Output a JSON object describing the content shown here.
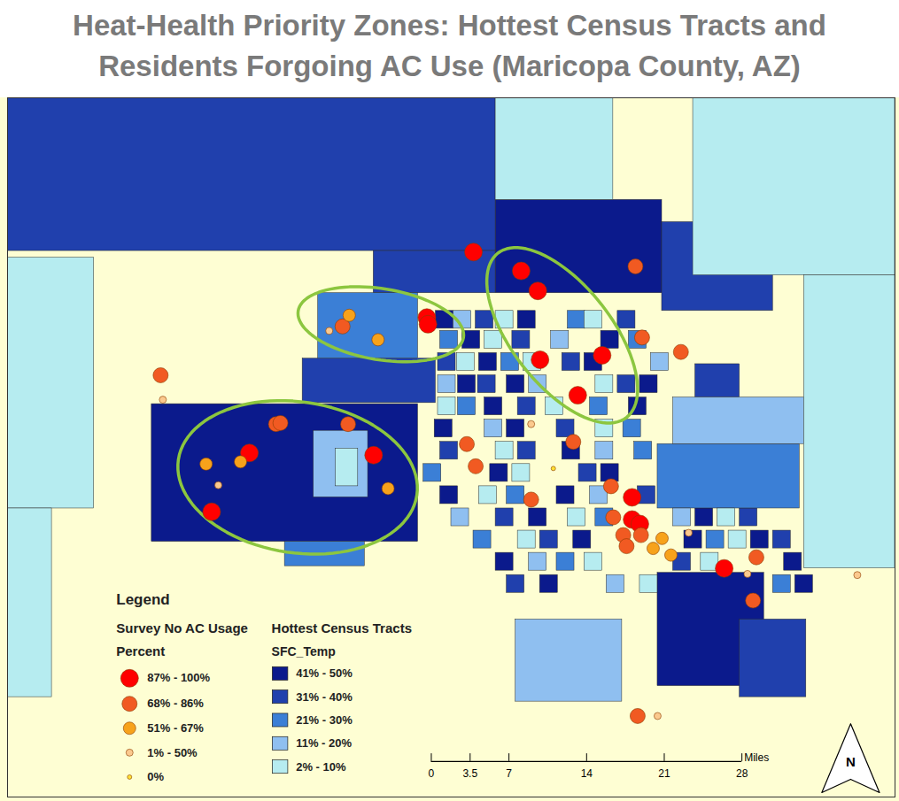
{
  "chart_data": {
    "type": "map",
    "title": "Heat-Health Priority Zones: Hottest Census Tracts and Residents Forgoing AC Use (Maricopa County, AZ)",
    "xlim": [
      0,
      80
    ],
    "ylim": [
      0,
      63
    ],
    "tick_labels": false,
    "legend_title": "Legend",
    "survey": {
      "title": "Survey No AC Usage",
      "subtitle": "Percent",
      "classes": [
        {
          "label": "87% - 100%",
          "color": "#ff0000",
          "points": [
            [
              42,
              13.9
            ],
            [
              46.3,
              15.6
            ],
            [
              47.8,
              17.4
            ],
            [
              37.8,
              19.8
            ],
            [
              37.9,
              20.4
            ],
            [
              48,
              23.6
            ],
            [
              53.6,
              23.2
            ],
            [
              51.4,
              26.8
            ],
            [
              21.8,
              32
            ],
            [
              33,
              32.2
            ],
            [
              18.4,
              37.3
            ],
            [
              56.3,
              36
            ],
            [
              56.3,
              38
            ],
            [
              57,
              38.4
            ],
            [
              64.6,
              42.4
            ]
          ]
        },
        {
          "label": "68% - 86%",
          "color": "#f15a22",
          "points": [
            [
              56.6,
              15.2
            ],
            [
              57.2,
              21.6
            ],
            [
              60.7,
              22.9
            ],
            [
              13.8,
              25
            ],
            [
              30.2,
              20.6
            ],
            [
              24.2,
              29.4
            ],
            [
              24.6,
              29.3
            ],
            [
              30.7,
              29.4
            ],
            [
              41.4,
              31.2
            ],
            [
              42.2,
              33.2
            ],
            [
              51,
              31
            ],
            [
              47.2,
              36.2
            ],
            [
              54.4,
              35
            ],
            [
              54.6,
              37.8
            ],
            [
              55.5,
              39.4
            ],
            [
              57.1,
              39.4
            ],
            [
              55.8,
              40.4
            ],
            [
              67.5,
              41.4
            ],
            [
              67.2,
              45.3
            ],
            [
              56.8,
              55.7
            ]
          ]
        },
        {
          "label": "51% - 67%",
          "color": "#f7a21b",
          "points": [
            [
              30.8,
              19.6
            ],
            [
              33.4,
              21.8
            ],
            [
              17.9,
              33
            ],
            [
              21,
              32.8
            ],
            [
              34.3,
              35.2
            ],
            [
              58.2,
              40.6
            ],
            [
              59.8,
              41.2
            ],
            [
              59,
              39.7
            ]
          ]
        },
        {
          "label": "1% - 50%",
          "color": "#fbc98e",
          "points": [
            [
              14,
              27.2
            ],
            [
              29,
              21
            ],
            [
              47.2,
              29.4
            ],
            [
              19,
              34.9
            ],
            [
              58.6,
              55.7
            ],
            [
              76.6,
              43
            ],
            [
              66.7,
              42.9
            ],
            [
              61.4,
              39.2
            ]
          ]
        },
        {
          "label": "0%",
          "color": "#ffe135",
          "points": [
            [
              49.2,
              33.4
            ]
          ]
        }
      ]
    },
    "tracts": {
      "title": "Hottest Census Tracts",
      "subtitle": "SFC_Temp",
      "classes": [
        {
          "label": "41% - 50%",
          "color": "#0b1a8c",
          "rects": [
            [
              44,
              9.2,
              59,
              17.6
            ],
            [
              13,
              27.6,
              37,
              40
            ],
            [
              58.6,
              42.8,
              68.2,
              53
            ],
            [
              38.6,
              19.2,
              40.2,
              20.8
            ],
            [
              46,
              19.2,
              47.6,
              20.8
            ],
            [
              41,
              21,
              42.6,
              22.6
            ],
            [
              53.5,
              21,
              55.1,
              22.6
            ],
            [
              42.5,
              23,
              44.1,
              24.6
            ],
            [
              52,
              23,
              53.6,
              24.6
            ],
            [
              40.6,
              25,
              42.2,
              26.6
            ],
            [
              45,
              25,
              46.6,
              26.6
            ],
            [
              57,
              25,
              58.6,
              26.6
            ],
            [
              43,
              27,
              44.6,
              28.6
            ],
            [
              56,
              27,
              57.6,
              28.6
            ],
            [
              38.5,
              29,
              40.1,
              30.6
            ],
            [
              45,
              29,
              46.6,
              30.6
            ],
            [
              50,
              31,
              51.6,
              32.6
            ],
            [
              43.5,
              33,
              45.1,
              34.6
            ],
            [
              53.5,
              33,
              55.1,
              34.6
            ],
            [
              39,
              35,
              40.6,
              36.6
            ],
            [
              49.5,
              35,
              51.1,
              36.6
            ],
            [
              47,
              37,
              48.6,
              38.6
            ],
            [
              62,
              37,
              63.6,
              38.6
            ],
            [
              51,
              39,
              52.6,
              40.6
            ],
            [
              61,
              39,
              62.6,
              40.6
            ],
            [
              67,
              39,
              68.6,
              40.6
            ],
            [
              44,
              41,
              45.6,
              42.6
            ],
            [
              70,
              41,
              71.6,
              42.6
            ],
            [
              48,
              43,
              49.6,
              44.6
            ],
            [
              71,
              43,
              72.6,
              44.6
            ]
          ]
        },
        {
          "label": "31% - 40%",
          "color": "#2040ad",
          "rects": [
            [
              0,
              0,
              44,
              13.8
            ],
            [
              33,
              13.8,
              44,
              17.6
            ],
            [
              59,
              11.2,
              69,
              19.2
            ],
            [
              26.6,
              23.5,
              38.6,
              27.5
            ],
            [
              66,
              47,
              72,
              54
            ],
            [
              62,
              24,
              66,
              27
            ],
            [
              42.2,
              19.2,
              43.8,
              20.8
            ],
            [
              55,
              19.2,
              56.6,
              20.8
            ],
            [
              45.5,
              21,
              47.1,
              22.6
            ],
            [
              38.8,
              23,
              40.4,
              24.6
            ],
            [
              50,
              23,
              51.6,
              24.6
            ],
            [
              42.4,
              25,
              44,
              26.6
            ],
            [
              55,
              25,
              56.6,
              26.6
            ],
            [
              46,
              27,
              47.6,
              28.6
            ],
            [
              49.5,
              29,
              51.1,
              30.6
            ],
            [
              39,
              31,
              40.6,
              32.6
            ],
            [
              46,
              31,
              47.6,
              32.6
            ],
            [
              51.5,
              33,
              53.1,
              34.6
            ],
            [
              56.8,
              35,
              58.4,
              36.6
            ],
            [
              44,
              37,
              45.6,
              38.6
            ],
            [
              66,
              37,
              67.6,
              38.6
            ],
            [
              48,
              39,
              49.6,
              40.6
            ],
            [
              69,
              39,
              70.6,
              40.6
            ],
            [
              60,
              41,
              61.6,
              42.6
            ],
            [
              45,
              43,
              46.6,
              44.6
            ]
          ]
        },
        {
          "label": "21% - 30%",
          "color": "#3b7fd6",
          "rects": [
            [
              28,
              17.6,
              37,
              23.5
            ],
            [
              25,
              40,
              32.2,
              42.2
            ],
            [
              58.6,
              31.2,
              71.4,
              37
            ],
            [
              50.5,
              19.2,
              52.1,
              20.8
            ],
            [
              39,
              21,
              40.6,
              22.6
            ],
            [
              56,
              21,
              57.6,
              22.6
            ],
            [
              44.5,
              23,
              46.1,
              24.6
            ],
            [
              40.6,
              27,
              42.2,
              28.6
            ],
            [
              52.5,
              27,
              54.1,
              28.6
            ],
            [
              55.5,
              29,
              57.1,
              30.6
            ],
            [
              56.5,
              31,
              58.1,
              32.6
            ],
            [
              37.5,
              33,
              39.1,
              34.6
            ],
            [
              45,
              35,
              46.6,
              36.6
            ],
            [
              53,
              37,
              54.6,
              38.6
            ],
            [
              42,
              39,
              43.6,
              40.6
            ],
            [
              63,
              39,
              64.6,
              40.6
            ],
            [
              49.5,
              41,
              51.1,
              42.6
            ],
            [
              69,
              43,
              70.6,
              44.6
            ]
          ]
        },
        {
          "label": "11% - 20%",
          "color": "#8fbff0",
          "rects": [
            [
              27.6,
              30,
              32.5,
              36
            ],
            [
              45.8,
              47,
              55.4,
              54.4
            ],
            [
              60,
              27,
              71.8,
              31.2
            ],
            [
              40.2,
              19.2,
              41.8,
              20.8
            ],
            [
              49,
              21,
              50.6,
              22.6
            ],
            [
              58,
              23,
              59.6,
              24.6
            ],
            [
              38.8,
              25,
              40.4,
              26.6
            ],
            [
              47,
              25,
              48.6,
              26.6
            ],
            [
              43,
              29,
              44.6,
              30.6
            ],
            [
              53,
              31,
              54.6,
              32.6
            ],
            [
              52.5,
              35,
              54.1,
              36.6
            ],
            [
              40,
              37,
              41.6,
              38.6
            ],
            [
              60,
              37,
              61.6,
              38.6
            ],
            [
              47,
              41,
              48.6,
              42.6
            ],
            [
              54,
              43,
              55.6,
              44.6
            ]
          ]
        },
        {
          "label": "2% - 10%",
          "color": "#b6ecf0",
          "rects": [
            [
              44,
              0,
              54.6,
              9.2
            ],
            [
              61.8,
              0,
              80,
              16
            ],
            [
              71.8,
              16,
              80,
              42.4
            ],
            [
              0,
              14.4,
              7.8,
              37
            ],
            [
              0,
              37,
              4,
              54
            ],
            [
              29.6,
              31.6,
              31.6,
              35
            ],
            [
              44,
              19.2,
              45.6,
              20.8
            ],
            [
              52,
              19.2,
              53.6,
              20.8
            ],
            [
              43,
              21,
              44.6,
              22.6
            ],
            [
              40.5,
              23,
              42.1,
              24.6
            ],
            [
              46.5,
              23,
              48.1,
              24.6
            ],
            [
              53,
              25,
              54.6,
              26.6
            ],
            [
              38.8,
              27,
              40.4,
              28.6
            ],
            [
              48.5,
              27,
              50.1,
              28.6
            ],
            [
              53,
              29,
              54.6,
              30.6
            ],
            [
              44,
              31,
              45.6,
              32.6
            ],
            [
              45.5,
              33,
              47.1,
              34.6
            ],
            [
              42.5,
              35,
              44.1,
              36.6
            ],
            [
              50.5,
              37,
              52.1,
              38.6
            ],
            [
              64,
              37,
              65.6,
              38.6
            ],
            [
              46,
              39,
              47.6,
              40.6
            ],
            [
              65,
              39,
              66.6,
              40.6
            ],
            [
              52,
              41,
              53.6,
              42.6
            ],
            [
              62.5,
              41,
              64.1,
              42.6
            ],
            [
              57,
              43,
              58.6,
              44.6
            ]
          ]
        }
      ]
    },
    "highlight_zones": [
      {
        "from": [
          26.2,
          19.2
        ],
        "to": [
          41.1,
          21.6
        ],
        "half_width": 3.2,
        "color": "#8cc63f"
      },
      {
        "from": [
          44.2,
          14
        ],
        "to": [
          55.8,
          28.8
        ],
        "half_width": 4.5,
        "color": "#8cc63f"
      },
      {
        "from": [
          15.4,
          32.6
        ],
        "to": [
          36.9,
          35.8
        ],
        "half_width": 6.8,
        "color": "#8cc63f"
      }
    ],
    "scale_bar": {
      "ticks": [
        0,
        3.5,
        7,
        14,
        21,
        28
      ],
      "label": "Miles"
    },
    "north_arrow": "N"
  }
}
